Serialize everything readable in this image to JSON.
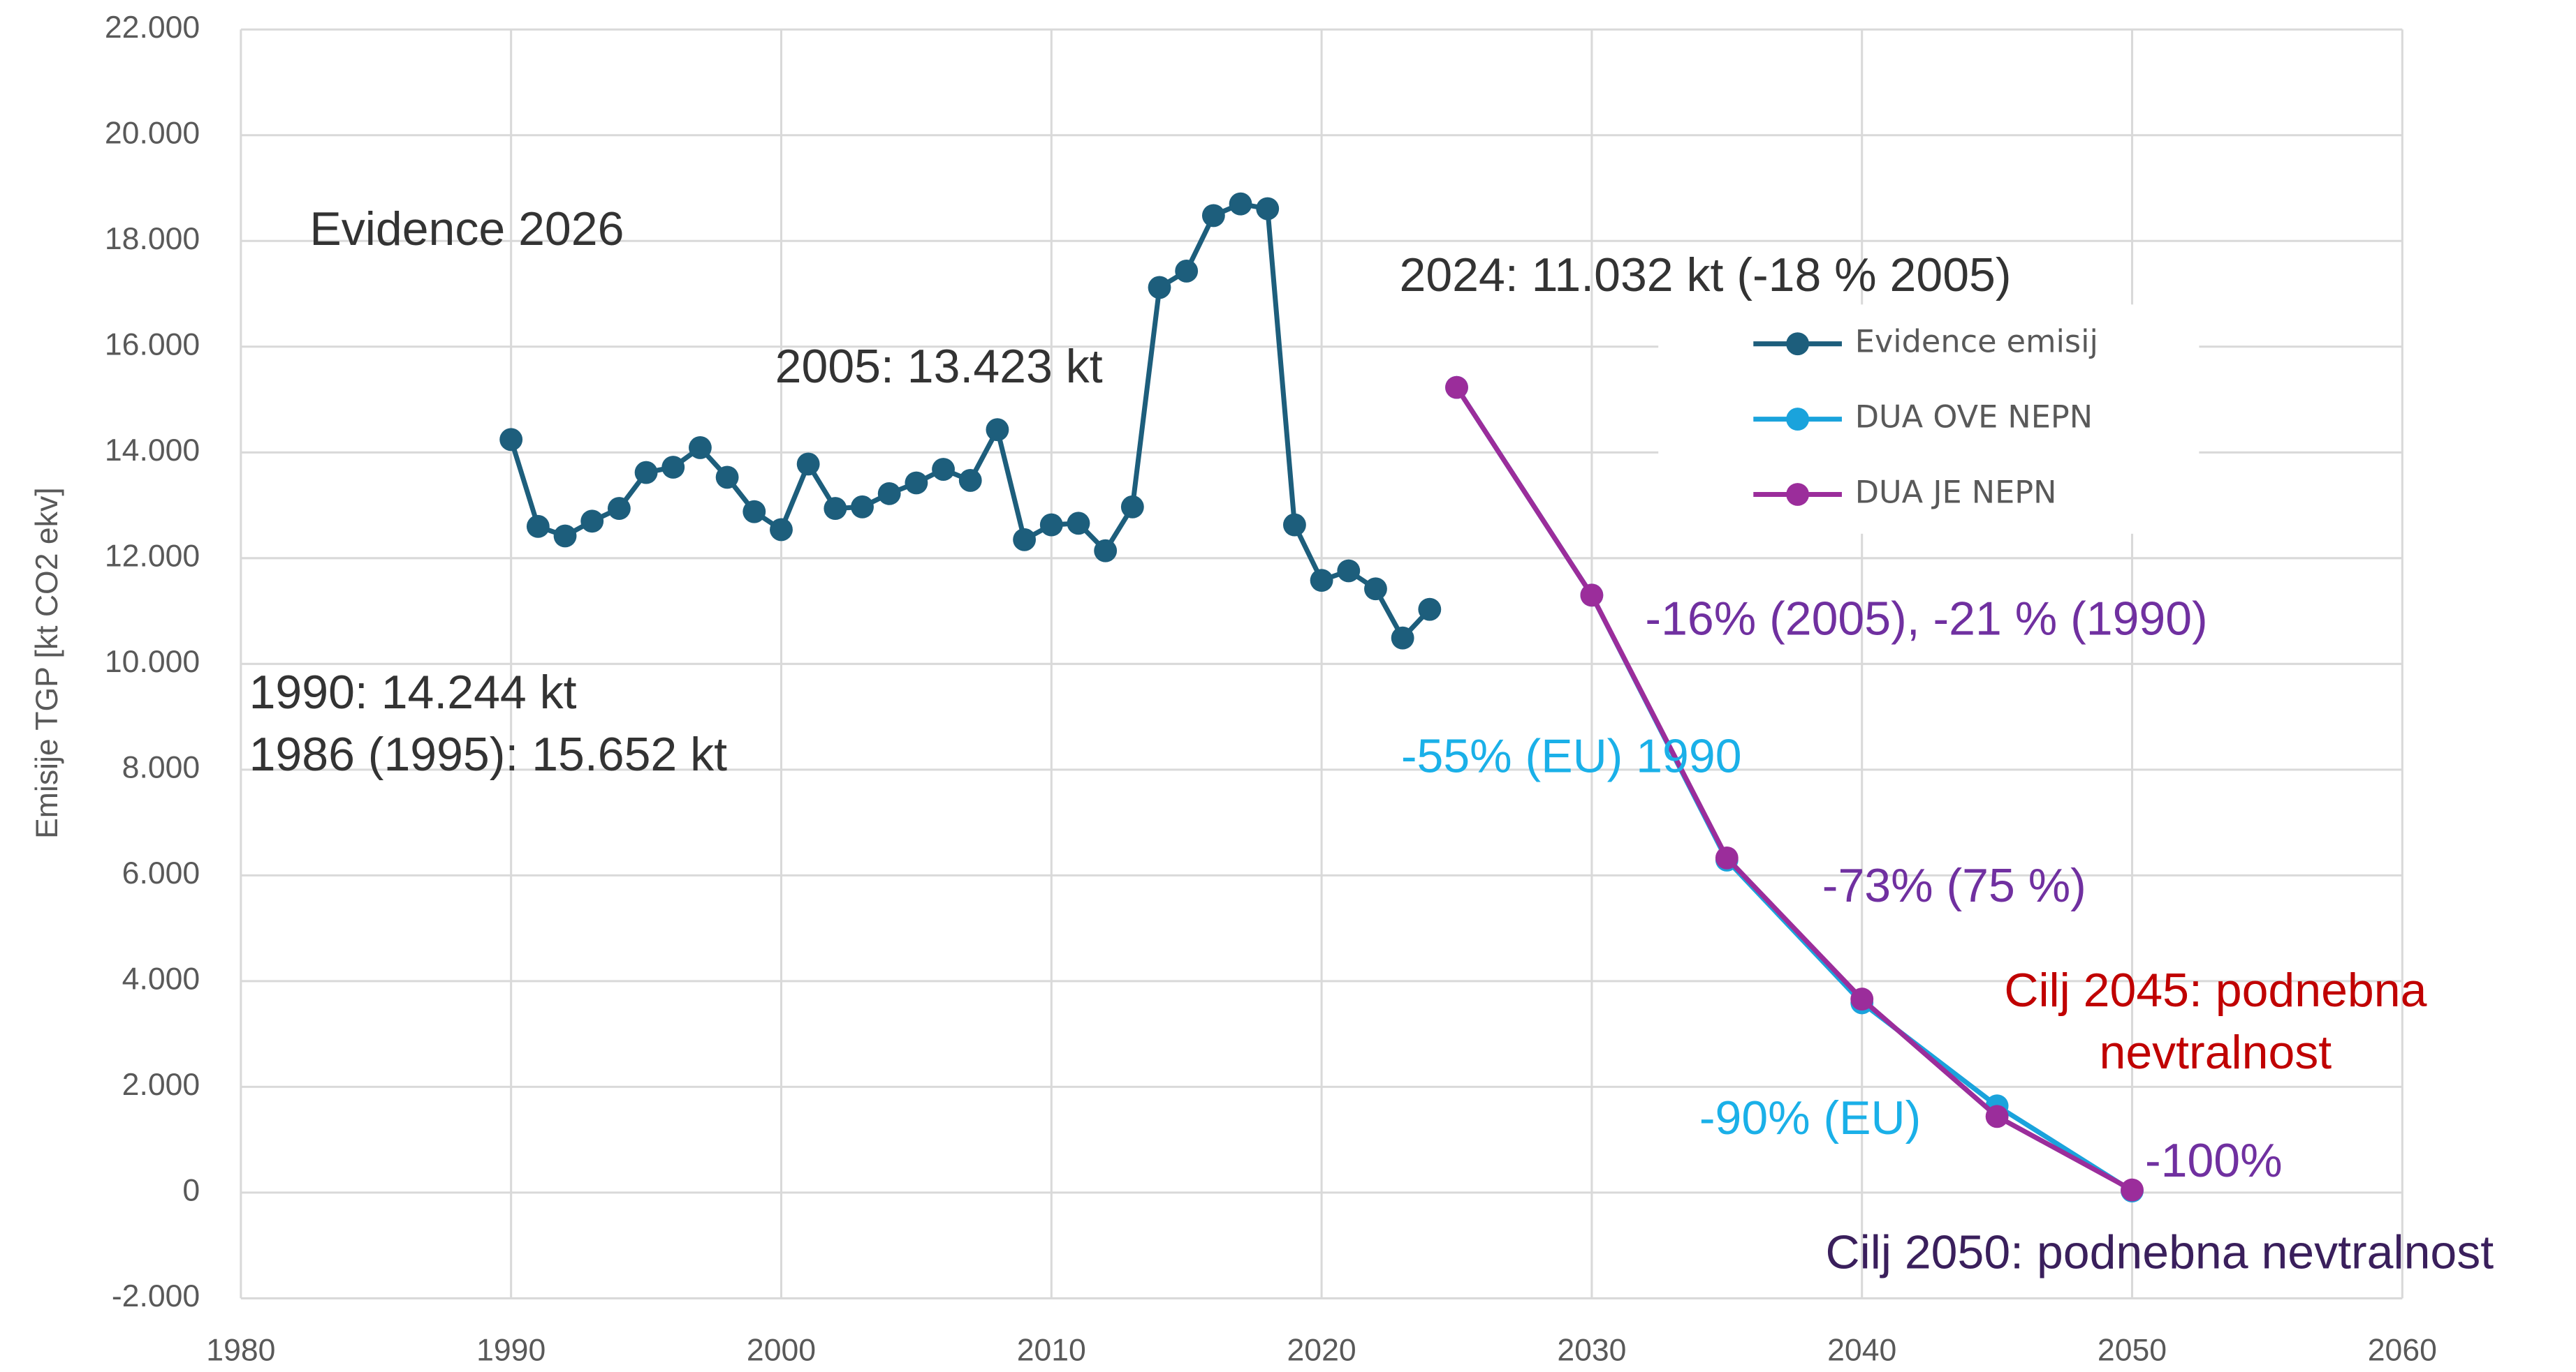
{
  "chart_data": {
    "type": "line",
    "y_label": "Emisije TGP [kt CO2 ekv]",
    "xlim": [
      1980,
      2060
    ],
    "xticks": [
      1980,
      1990,
      2000,
      2010,
      2020,
      2030,
      2040,
      2050,
      2060
    ],
    "ylim": [
      -2000,
      22000
    ],
    "yticks": [
      {
        "value": -2000,
        "label": "-2.000"
      },
      0,
      {
        "value": 2000,
        "label": "2.000"
      },
      {
        "value": 4000,
        "label": "4.000"
      },
      {
        "value": 6000,
        "label": "6.000"
      },
      {
        "value": 8000,
        "label": "8.000"
      },
      {
        "value": 10000,
        "label": "10.000"
      },
      {
        "value": 12000,
        "label": "12.000"
      },
      {
        "value": 14000,
        "label": "14.000"
      },
      {
        "value": 16000,
        "label": "16.000"
      },
      {
        "value": 18000,
        "label": "18.000"
      },
      {
        "value": 20000,
        "label": "20.000"
      },
      {
        "value": 22000,
        "label": "22.000"
      }
    ],
    "grid": true,
    "legend": "upper right",
    "series": [
      {
        "name": "Evidence emisij",
        "color": "#1d5e7c",
        "x": [
          1990,
          1991,
          1992,
          1993,
          1994,
          1995,
          1996,
          1997,
          1998,
          1999,
          2000,
          2001,
          2002,
          2003,
          2004,
          2005,
          2006,
          2007,
          2008,
          2009,
          2010,
          2011,
          2012,
          2013,
          2014,
          2015,
          2016,
          2017,
          2018,
          2019,
          2020,
          2021,
          2022,
          2023,
          2024
        ],
        "values": [
          14244,
          12600,
          12420,
          12700,
          12940,
          13620,
          13720,
          14090,
          13530,
          12880,
          12540,
          13780,
          12940,
          12970,
          13220,
          13423,
          13680,
          13470,
          14430,
          12350,
          12630,
          12660,
          12140,
          12970,
          17120,
          17430,
          18480,
          18700,
          18610,
          12630,
          11580,
          11760,
          11420,
          10490,
          11032
        ]
      },
      {
        "name": "DUA OVE NEPN",
        "color": "#1aa3dc",
        "x": [
          2025,
          2030,
          2035,
          2040,
          2045,
          2050
        ],
        "values": [
          15230,
          11300,
          6290,
          3590,
          1640,
          30
        ]
      },
      {
        "name": "DUA JE NEPN",
        "color": "#9b2d9b",
        "x": [
          2025,
          2030,
          2035,
          2040,
          2045,
          2050
        ],
        "values": [
          15230,
          11300,
          6330,
          3660,
          1440,
          50
        ]
      }
    ],
    "annotations": [
      {
        "text": "Evidence 2026",
        "color": "#333333"
      },
      {
        "text": "2024: 11.032 kt (-18 % 2005)",
        "color": "#333333"
      },
      {
        "text": "2005: 13.423 kt",
        "color": "#333333"
      },
      {
        "text": "1990: 14.244 kt",
        "color": "#333333"
      },
      {
        "text": "1986 (1995): 15.652 kt",
        "color": "#333333"
      },
      {
        "text": "-16% (2005), -21 % (1990)",
        "color": "#7030a0"
      },
      {
        "text": "-55% (EU) 1990",
        "color": "#1ab0e8"
      },
      {
        "text": "-73% (75 %)",
        "color": "#7030a0"
      },
      {
        "text": "Cilj 2045: podnebna",
        "color": "#c00000"
      },
      {
        "text": "nevtralnost",
        "color": "#c00000"
      },
      {
        "text": "-90% (EU)",
        "color": "#1ab0e8"
      },
      {
        "text": "-100%",
        "color": "#7030a0"
      },
      {
        "text": "Cilj 2050: podnebna nevtralnost",
        "color": "#3a1f5c"
      }
    ]
  }
}
